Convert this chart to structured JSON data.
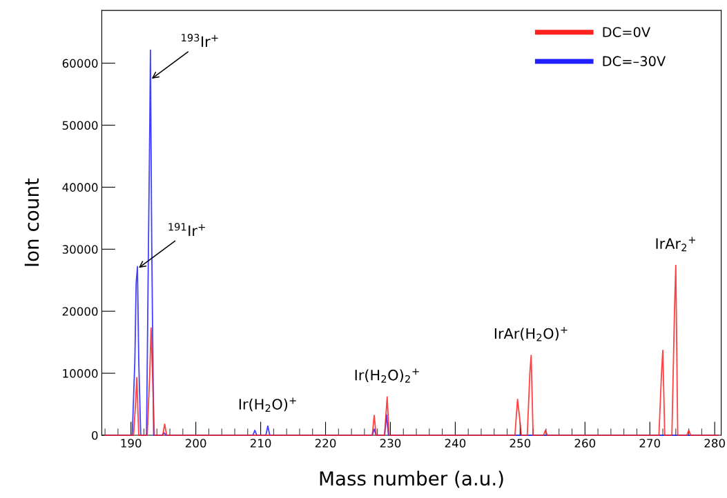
{
  "chart_data": {
    "type": "line",
    "xlabel": "Mass number (a.u.)",
    "ylabel": "Ion count",
    "xlim": [
      185.5,
      281
    ],
    "ylim": [
      0,
      68500
    ],
    "xticks": [
      190,
      200,
      210,
      220,
      230,
      240,
      250,
      260,
      270,
      280
    ],
    "yticks": [
      0,
      10000,
      20000,
      30000,
      40000,
      50000,
      60000
    ],
    "legend": "top right",
    "grid": false,
    "marker": "none",
    "line_style": "solid",
    "series": [
      {
        "name": "DC=0V",
        "color": "#ff2020",
        "x": [
          186.0,
          190.4,
          190.7,
          190.9,
          191.2,
          192.5,
          192.9,
          193.1,
          193.4,
          193.6,
          194.9,
          195.2,
          195.5,
          227.2,
          227.5,
          227.8,
          229.1,
          229.5,
          229.8,
          249.2,
          249.6,
          249.9,
          250.2,
          251.1,
          251.5,
          251.7,
          252.0,
          253.6,
          253.9,
          254.2,
          271.4,
          271.8,
          272.0,
          272.3,
          273.4,
          273.8,
          274.0,
          274.3,
          275.7,
          276.0,
          276.3,
          280.5
        ],
        "values": [
          0,
          0,
          5000,
          9300,
          0,
          0,
          10000,
          17300,
          7000,
          0,
          0,
          1800,
          0,
          0,
          3200,
          0,
          0,
          6200,
          0,
          0,
          5800,
          3000,
          0,
          0,
          10000,
          12900,
          0,
          0,
          800,
          0,
          0,
          10000,
          13700,
          0,
          0,
          20000,
          27400,
          0,
          0,
          800,
          0,
          0
        ]
      },
      {
        "name": "DC=–30V",
        "color": "#2020ff",
        "x": [
          186.0,
          190.2,
          190.6,
          190.8,
          191.0,
          191.2,
          191.5,
          192.4,
          192.7,
          192.9,
          193.0,
          193.2,
          193.5,
          194.8,
          195.1,
          195.4,
          208.8,
          209.1,
          209.4,
          210.8,
          211.1,
          211.4,
          227.2,
          227.5,
          227.8,
          229.1,
          229.4,
          229.7,
          280.5
        ],
        "values": [
          0,
          0,
          12000,
          24500,
          27200,
          12000,
          0,
          0,
          31000,
          50000,
          62100,
          31000,
          0,
          0,
          400,
          0,
          0,
          800,
          0,
          0,
          1500,
          0,
          0,
          1000,
          0,
          0,
          3300,
          0,
          0
        ]
      }
    ],
    "annotations": [
      {
        "text": "$^{193}$Ir$^{+}$",
        "x": 193.2,
        "y": 57500
      },
      {
        "text": "$^{191}$Ir$^{+}$",
        "x": 191.2,
        "y": 27000
      },
      {
        "text": "Ir(H$_{2}$O)$^{+}$",
        "x": 211.1,
        "y": 1500
      },
      {
        "text": "Ir(H$_{2}$O)$_{2}$$^{+}$",
        "x": 229.5,
        "y": 6200
      },
      {
        "text": "IrAr(H$_{2}$O)$^{+}$",
        "x": 251.7,
        "y": 12900
      },
      {
        "text": "IrAr$_{2}$$^{+}$",
        "x": 274.0,
        "y": 27400
      }
    ]
  }
}
